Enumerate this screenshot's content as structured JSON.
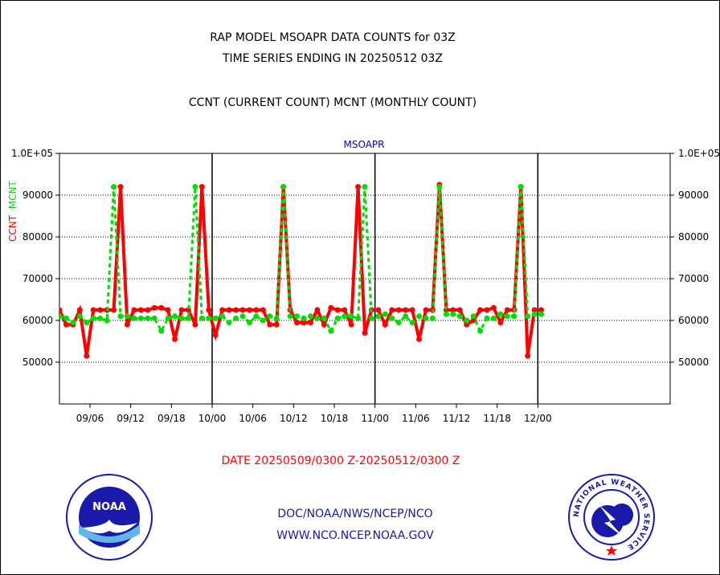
{
  "header": {
    "title_line1": "RAP MODEL MSOAPR DATA COUNTS for 03Z",
    "title_line2": "TIME SERIES ENDING IN 20250512 03Z",
    "subtitle": "CCNT (CURRENT COUNT) MCNT (MONTHLY COUNT)"
  },
  "footer": {
    "date_range": "DATE 20250509/0300 Z-20250512/0300 Z",
    "link1": "DOC/NOAA/NWS/NCEP/NCO",
    "link2": "WWW.NCO.NCEP.NOAA.GOV",
    "noaa_logo_text": "NOAA",
    "nws_logo_text": "NATIONAL WEATHER SERVICE"
  },
  "chart_data": {
    "type": "line",
    "title": "MSOAPR",
    "ylabel_ccnt": "CCNT",
    "ylabel_mcnt": "MCNT",
    "ylim": [
      40000,
      100000
    ],
    "yticks": [
      50000,
      60000,
      70000,
      80000,
      90000,
      100000
    ],
    "ytick_labels": [
      "50000",
      "60000",
      "70000",
      "80000",
      "90000",
      "1.0E+05"
    ],
    "xlim": [
      0,
      90
    ],
    "x_tick_labels": [
      {
        "x": 4.5,
        "label": "09/06"
      },
      {
        "x": 10.5,
        "label": "09/12"
      },
      {
        "x": 16.5,
        "label": "09/18"
      },
      {
        "x": 22.5,
        "label": "10/00"
      },
      {
        "x": 28.5,
        "label": "10/06"
      },
      {
        "x": 34.5,
        "label": "10/12"
      },
      {
        "x": 40.5,
        "label": "10/18"
      },
      {
        "x": 46.5,
        "label": "11/00"
      },
      {
        "x": 52.5,
        "label": "11/06"
      },
      {
        "x": 58.5,
        "label": "11/12"
      },
      {
        "x": 64.5,
        "label": "11/18"
      },
      {
        "x": 70.5,
        "label": "12/00"
      }
    ],
    "day_boundaries": [
      22.5,
      46.5,
      70.5
    ],
    "grid": true,
    "series": [
      {
        "name": "CCNT",
        "color": "#ff0000",
        "values": [
          62500,
          59000,
          59000,
          62500,
          51500,
          62500,
          62500,
          62500,
          62500,
          92000,
          59000,
          62500,
          62500,
          62500,
          63000,
          63000,
          62500,
          55500,
          62500,
          62500,
          59000,
          92000,
          62500,
          56500,
          62500,
          62500,
          62500,
          62500,
          62500,
          62500,
          62500,
          59000,
          59000,
          92000,
          62500,
          59500,
          59500,
          59500,
          62500,
          59000,
          63000,
          62500,
          62500,
          59000,
          92000,
          57000,
          62500,
          62500,
          59000,
          62500,
          62500,
          62500,
          62500,
          55500,
          62500,
          62500,
          92500,
          62500,
          62500,
          62500,
          59000,
          60000,
          62500,
          62500,
          63000,
          59500,
          62500,
          62500,
          92000,
          51500,
          62500,
          62500
        ]
      },
      {
        "name": "MCNT",
        "color": "#00dd00",
        "values": [
          61000,
          60500,
          59500,
          61000,
          59500,
          60500,
          60500,
          60000,
          92000,
          61000,
          61000,
          60500,
          60500,
          60500,
          60500,
          57500,
          60500,
          61000,
          60500,
          60500,
          92000,
          60500,
          60500,
          60500,
          61000,
          59500,
          60500,
          61000,
          59500,
          61000,
          60000,
          61000,
          60500,
          92000,
          61000,
          61000,
          60500,
          61000,
          60500,
          60500,
          57500,
          60500,
          61000,
          61000,
          60500,
          92000,
          60500,
          61000,
          61500,
          60500,
          59500,
          61000,
          59500,
          61000,
          60500,
          60500,
          92000,
          61500,
          61500,
          61000,
          60000,
          61000,
          57500,
          60500,
          60500,
          61500,
          61000,
          61000,
          92000,
          61000,
          61500,
          61500
        ]
      }
    ]
  }
}
